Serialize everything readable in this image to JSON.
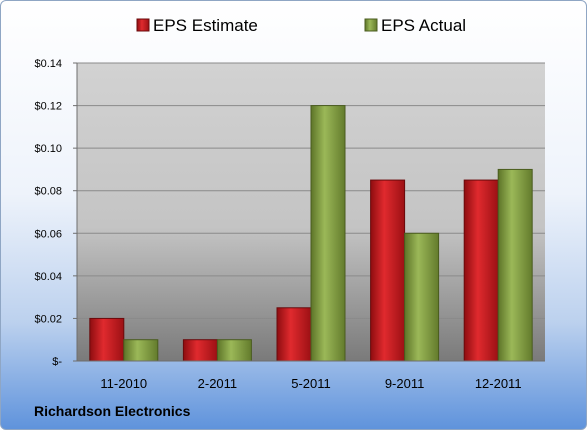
{
  "footer_label": "Richardson Electronics",
  "chart_data": {
    "type": "bar",
    "title": "",
    "xlabel": "",
    "ylabel": "",
    "categories": [
      "11-2010",
      "2-2011",
      "5-2011",
      "9-2011",
      "12-2011"
    ],
    "series": [
      {
        "name": "EPS Estimate",
        "color": "#c0141a",
        "values": [
          0.02,
          0.01,
          0.025,
          0.085,
          0.085
        ]
      },
      {
        "name": "EPS Actual",
        "color": "#7e9a3c",
        "values": [
          0.01,
          0.01,
          0.12,
          0.06,
          0.09
        ]
      }
    ],
    "ylim": [
      0,
      0.14
    ],
    "yticks": [
      0,
      0.02,
      0.04,
      0.06,
      0.08,
      0.1,
      0.12,
      0.14
    ],
    "ytick_labels": [
      "$-",
      "$0.02",
      "$0.04",
      "$0.06",
      "$0.08",
      "$0.10",
      "$0.12",
      "$0.14"
    ],
    "grid": true,
    "legend_position": "top"
  }
}
